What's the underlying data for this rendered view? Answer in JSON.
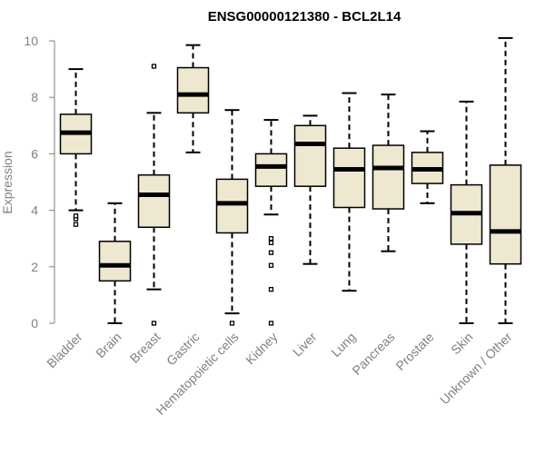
{
  "chart_data": {
    "type": "boxplot",
    "title": "ENSG00000121380 - BCL2L14",
    "xlabel": "",
    "ylabel": "Expression",
    "ylim": [
      0,
      10
    ],
    "yticks": [
      0,
      2,
      4,
      6,
      8,
      10
    ],
    "box_fill": "#EDE8CF",
    "box_stroke": "#000000",
    "categories": [
      "Bladder",
      "Brain",
      "Breast",
      "Gastric",
      "Hematopoietic cells",
      "Kidney",
      "Liver",
      "Lung",
      "Pancreas",
      "Prostate",
      "Skin",
      "Unknown / Other"
    ],
    "boxes": [
      {
        "name": "Bladder",
        "whisker_low": 4.0,
        "q1": 6.0,
        "median": 6.75,
        "q3": 7.4,
        "whisker_high": 9.0,
        "outliers": [
          3.5,
          3.7,
          3.8
        ]
      },
      {
        "name": "Brain",
        "whisker_low": 0.0,
        "q1": 1.5,
        "median": 2.05,
        "q3": 2.9,
        "whisker_high": 4.25,
        "outliers": []
      },
      {
        "name": "Breast",
        "whisker_low": 1.2,
        "q1": 3.4,
        "median": 4.55,
        "q3": 5.25,
        "whisker_high": 7.45,
        "outliers": [
          9.1,
          0.0
        ]
      },
      {
        "name": "Gastric",
        "whisker_low": 6.05,
        "q1": 7.45,
        "median": 8.1,
        "q3": 9.05,
        "whisker_high": 9.85,
        "outliers": []
      },
      {
        "name": "Hematopoietic cells",
        "whisker_low": 0.35,
        "q1": 3.2,
        "median": 4.25,
        "q3": 5.1,
        "whisker_high": 7.55,
        "outliers": [
          0.0
        ]
      },
      {
        "name": "Kidney",
        "whisker_low": 3.85,
        "q1": 4.85,
        "median": 5.55,
        "q3": 6.0,
        "whisker_high": 7.2,
        "outliers": [
          3.0,
          2.85,
          2.5,
          2.05,
          1.2,
          0.0
        ]
      },
      {
        "name": "Liver",
        "whisker_low": 2.1,
        "q1": 4.85,
        "median": 6.35,
        "q3": 7.0,
        "whisker_high": 7.35,
        "outliers": []
      },
      {
        "name": "Lung",
        "whisker_low": 1.15,
        "q1": 4.1,
        "median": 5.45,
        "q3": 6.2,
        "whisker_high": 8.15,
        "outliers": []
      },
      {
        "name": "Pancreas",
        "whisker_low": 2.55,
        "q1": 4.05,
        "median": 5.5,
        "q3": 6.3,
        "whisker_high": 8.1,
        "outliers": []
      },
      {
        "name": "Prostate",
        "whisker_low": 4.25,
        "q1": 4.95,
        "median": 5.45,
        "q3": 6.05,
        "whisker_high": 6.8,
        "outliers": []
      },
      {
        "name": "Skin",
        "whisker_low": 0.0,
        "q1": 2.8,
        "median": 3.9,
        "q3": 4.9,
        "whisker_high": 7.85,
        "outliers": []
      },
      {
        "name": "Unknown / Other",
        "whisker_low": 0.0,
        "q1": 2.1,
        "median": 3.25,
        "q3": 5.6,
        "whisker_high": 10.1,
        "outliers": []
      }
    ]
  }
}
